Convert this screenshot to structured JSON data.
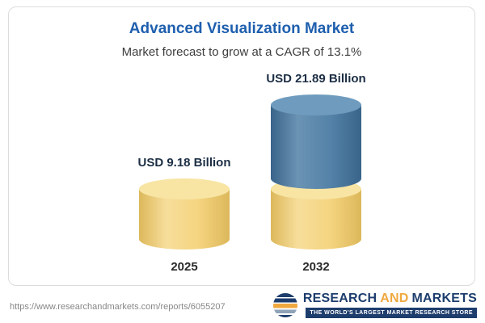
{
  "header": {
    "title": "Advanced Visualization Market",
    "subtitle": "Market forecast to grow at a CAGR of 13.1%"
  },
  "chart_data": {
    "type": "bar",
    "title": "Advanced Visualization Market",
    "subtitle": "Market forecast to grow at a CAGR of 13.1%",
    "categories": [
      "2025",
      "2032"
    ],
    "values": [
      9.18,
      21.89
    ],
    "unit": "USD Billion",
    "cagr_pct": 13.1,
    "bars": [
      {
        "year": "2025",
        "label": "USD 9.18 Billion",
        "value": 9.18
      },
      {
        "year": "2032",
        "label": "USD 21.89 Billion",
        "value": 21.89
      }
    ],
    "colors": {
      "base_segment": "#f3cf6f",
      "base_cap": "#f8e5a4",
      "growth_segment": "#4a7ba3",
      "growth_cap": "#6f9cbe",
      "title": "#1e5fae"
    },
    "legend": "none",
    "grid": false
  },
  "footer": {
    "url": "https://www.researchandmarkets.com/reports/6055207"
  },
  "logo": {
    "name_part1": "RESEARCH",
    "name_part2": "AND",
    "name_part3": "MARKETS",
    "tagline": "THE WORLD'S LARGEST MARKET RESEARCH STORE",
    "colors": {
      "navy": "#1d3d6d",
      "orange": "#efa93f"
    }
  }
}
